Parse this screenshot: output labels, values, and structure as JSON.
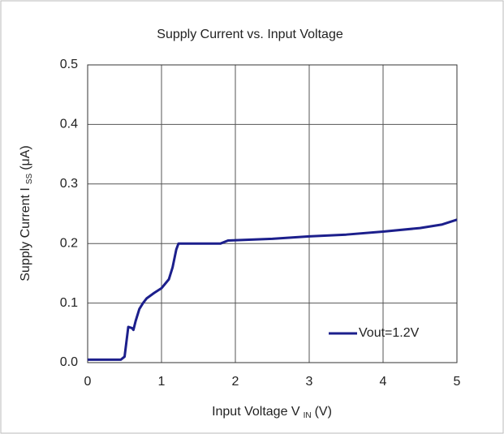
{
  "chart_data": {
    "type": "line",
    "title": "Supply Current vs. Input Voltage",
    "xlabel": "Input Voltage V",
    "xlabel_sub": "IN",
    "xlabel_unit": "(V)",
    "ylabel": "Supply Current I",
    "ylabel_sub": "SS",
    "ylabel_unit": "(μA)",
    "xlim": [
      0,
      5
    ],
    "xticks": [
      0,
      1,
      2,
      3,
      4,
      5
    ],
    "ylim": [
      0,
      0.5
    ],
    "yticks": [
      {
        "value": 0,
        "label": "0.0"
      },
      0.1,
      0.2,
      0.3,
      0.4,
      0.5
    ],
    "grid": true,
    "legend": "lower right",
    "series": [
      {
        "name": "Vout=1.2V",
        "color": "#1c1f8c",
        "x": [
          0,
          0.45,
          0.5,
          0.53,
          0.55,
          0.6,
          0.62,
          0.65,
          0.7,
          0.75,
          0.8,
          0.9,
          1.0,
          1.1,
          1.15,
          1.2,
          1.23,
          1.5,
          1.8,
          1.9,
          2.5,
          3.0,
          3.5,
          4.0,
          4.5,
          4.8,
          5.0
        ],
        "values": [
          0.005,
          0.005,
          0.01,
          0.04,
          0.06,
          0.058,
          0.055,
          0.07,
          0.09,
          0.1,
          0.108,
          0.117,
          0.125,
          0.14,
          0.16,
          0.19,
          0.2,
          0.2,
          0.2,
          0.205,
          0.208,
          0.212,
          0.215,
          0.22,
          0.226,
          0.232,
          0.24
        ]
      }
    ]
  }
}
